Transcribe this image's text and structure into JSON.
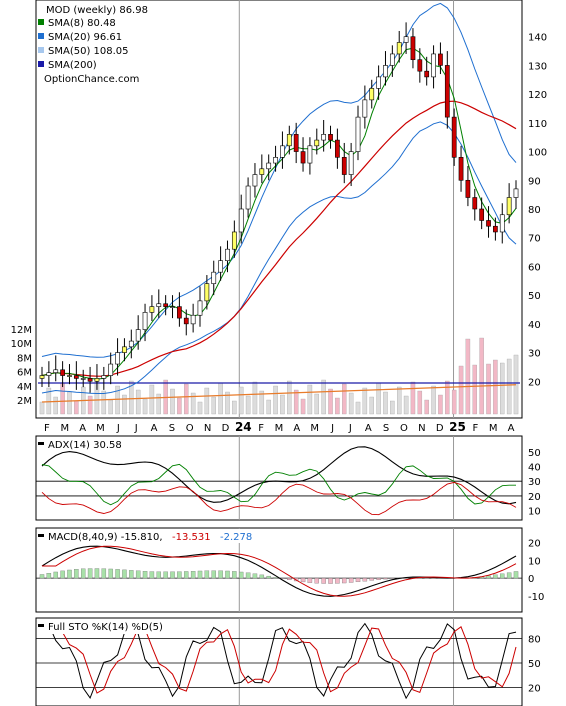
{
  "chart_data": {
    "type": "stock-chart",
    "x_months": [
      "F",
      "M",
      "A",
      "M",
      "J",
      "J",
      "A",
      "S",
      "O",
      "N",
      "D",
      "24",
      "F",
      "M",
      "A",
      "M",
      "J",
      "J",
      "A",
      "S",
      "O",
      "N",
      "D",
      "25",
      "F",
      "M",
      "A"
    ],
    "price_panel": {
      "legend": [
        {
          "text": "MOD (weekly) 86.98",
          "color": "#000000"
        },
        {
          "text": "SMA(8) 80.48",
          "color": "#008000"
        },
        {
          "text": "SMA(20) 96.61",
          "color": "#1f6fd0"
        },
        {
          "text": "SMA(50) 108.05",
          "color": "#a7c8ee"
        },
        {
          "text": "SMA(200)",
          "color": "#1a1aa8"
        },
        {
          "text": "OptionChance.com",
          "color": "#000000"
        }
      ],
      "y_ticks": [
        20,
        30,
        40,
        50,
        60,
        70,
        80,
        90,
        100,
        110,
        120,
        130,
        140
      ],
      "ylim": [
        10,
        150
      ],
      "volume_ticks": [
        "2M",
        "4M",
        "6M",
        "8M",
        "10M",
        "12M"
      ],
      "close": [
        22,
        23,
        24,
        22,
        22,
        21,
        21,
        20,
        21,
        22,
        26,
        30,
        32,
        34,
        38,
        44,
        46,
        47,
        46,
        46,
        42,
        40,
        43,
        48,
        54,
        58,
        62,
        66,
        72,
        80,
        88,
        92,
        94,
        96,
        98,
        102,
        106,
        100,
        96,
        102,
        104,
        106,
        104,
        98,
        92,
        100,
        112,
        118,
        122,
        126,
        130,
        134,
        138,
        140,
        132,
        128,
        126,
        134,
        130,
        112,
        98,
        90,
        84,
        80,
        76,
        74,
        72,
        78,
        84,
        87
      ]
    },
    "adx_panel": {
      "label": "ADX(14) 30.58",
      "y_ticks": [
        10,
        20,
        30,
        40,
        50
      ],
      "ylim": [
        5,
        58
      ]
    },
    "macd_panel": {
      "label": "MACD(8,40,9) -15.810,",
      "values": [
        "-13.531",
        "-2.278"
      ],
      "value_colors": [
        "#cc0000",
        "#1f6fd0"
      ],
      "y_ticks": [
        -10,
        0,
        10,
        20
      ],
      "ylim": [
        -18,
        26
      ]
    },
    "sto_panel": {
      "label": "Full STO %K(14) %D(5)",
      "y_ticks": [
        20,
        50,
        80
      ],
      "ylim": [
        0,
        100
      ]
    }
  }
}
